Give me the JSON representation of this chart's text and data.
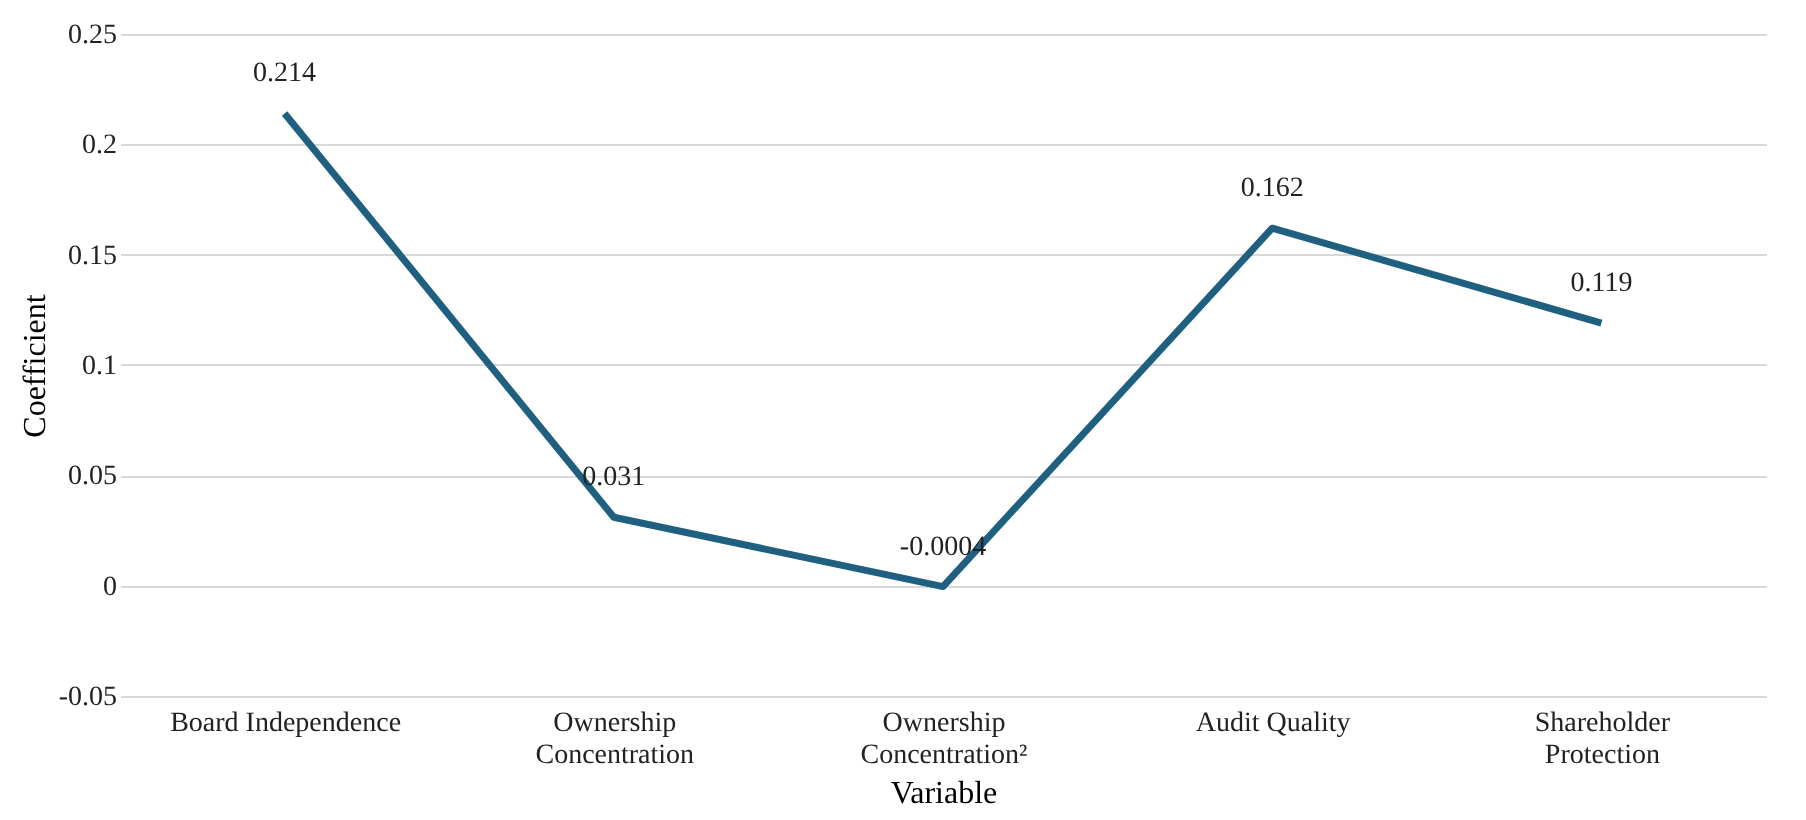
{
  "chart_data": {
    "type": "line",
    "xlabel": "Variable",
    "ylabel": "Coefficient",
    "categories": [
      "Board Independence",
      "Ownership Concentration",
      "Ownership Concentration²",
      "Audit Quality",
      "Shareholder Protection"
    ],
    "series": [
      {
        "color": "#1f5f7f",
        "values": [
          0.214,
          0.031,
          -0.0004,
          0.162,
          0.119
        ]
      }
    ],
    "ylim": [
      -0.05,
      0.25
    ],
    "yticks": [
      -0.05,
      0,
      0.05,
      0.1,
      0.15,
      0.2,
      0.25
    ],
    "grid": "y",
    "data_labels": true,
    "marker": "none",
    "line_style": "solid",
    "legend": false
  }
}
